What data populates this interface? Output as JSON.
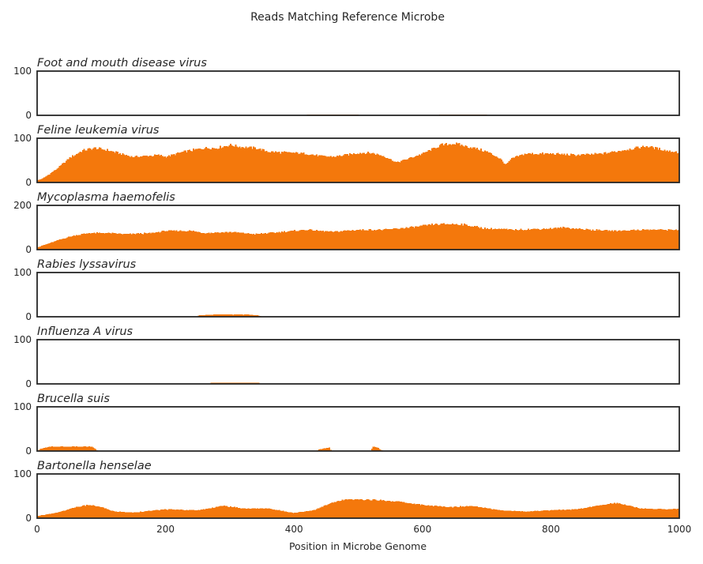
{
  "chart_data": {
    "type": "area",
    "title": "Reads Matching Reference Microbe",
    "xlabel": "Position in Microbe Genome",
    "xlim": [
      0,
      1000
    ],
    "x_ticks": [
      0,
      200,
      400,
      600,
      800,
      1000
    ],
    "bin_width": 2,
    "fill_color": "#f4780c",
    "grid": false,
    "legend": "none",
    "panels": [
      {
        "name": "Foot and mouth disease virus",
        "ylim": [
          0,
          100
        ],
        "y_ticks": [
          0,
          100
        ],
        "profile": [
          [
            0,
            0
          ],
          [
            420,
            0
          ],
          [
            421,
            2
          ],
          [
            500,
            2
          ],
          [
            501,
            0
          ],
          [
            625,
            0
          ],
          [
            626,
            2
          ],
          [
            700,
            2
          ],
          [
            701,
            0
          ],
          [
            1000,
            0
          ]
        ]
      },
      {
        "name": "Feline leukemia virus",
        "ylim": [
          0,
          100
        ],
        "y_ticks": [
          0,
          100
        ],
        "profile": [
          [
            0,
            5
          ],
          [
            10,
            10
          ],
          [
            30,
            30
          ],
          [
            50,
            55
          ],
          [
            70,
            72
          ],
          [
            90,
            78
          ],
          [
            110,
            73
          ],
          [
            130,
            65
          ],
          [
            150,
            58
          ],
          [
            170,
            60
          ],
          [
            190,
            62
          ],
          [
            200,
            58
          ],
          [
            210,
            62
          ],
          [
            230,
            70
          ],
          [
            260,
            78
          ],
          [
            280,
            78
          ],
          [
            300,
            85
          ],
          [
            320,
            80
          ],
          [
            340,
            78
          ],
          [
            360,
            70
          ],
          [
            380,
            68
          ],
          [
            400,
            67
          ],
          [
            420,
            65
          ],
          [
            440,
            60
          ],
          [
            460,
            58
          ],
          [
            480,
            62
          ],
          [
            500,
            67
          ],
          [
            520,
            67
          ],
          [
            540,
            60
          ],
          [
            560,
            45
          ],
          [
            580,
            55
          ],
          [
            600,
            65
          ],
          [
            630,
            85
          ],
          [
            650,
            88
          ],
          [
            680,
            78
          ],
          [
            700,
            70
          ],
          [
            720,
            55
          ],
          [
            730,
            40
          ],
          [
            740,
            55
          ],
          [
            760,
            65
          ],
          [
            800,
            65
          ],
          [
            840,
            62
          ],
          [
            880,
            65
          ],
          [
            920,
            75
          ],
          [
            950,
            82
          ],
          [
            980,
            72
          ],
          [
            1000,
            68
          ]
        ]
      },
      {
        "name": "Mycoplasma haemofelis",
        "ylim": [
          0,
          200
        ],
        "y_ticks": [
          0,
          200
        ],
        "profile": [
          [
            0,
            10
          ],
          [
            20,
            30
          ],
          [
            40,
            50
          ],
          [
            60,
            65
          ],
          [
            80,
            75
          ],
          [
            110,
            75
          ],
          [
            140,
            70
          ],
          [
            180,
            75
          ],
          [
            200,
            85
          ],
          [
            240,
            85
          ],
          [
            260,
            75
          ],
          [
            300,
            80
          ],
          [
            340,
            70
          ],
          [
            380,
            80
          ],
          [
            420,
            90
          ],
          [
            460,
            80
          ],
          [
            500,
            90
          ],
          [
            540,
            90
          ],
          [
            580,
            100
          ],
          [
            620,
            115
          ],
          [
            660,
            115
          ],
          [
            700,
            95
          ],
          [
            740,
            90
          ],
          [
            800,
            95
          ],
          [
            820,
            100
          ],
          [
            860,
            90
          ],
          [
            900,
            85
          ],
          [
            940,
            90
          ],
          [
            1000,
            90
          ]
        ]
      },
      {
        "name": "Rabies lyssavirus",
        "ylim": [
          0,
          100
        ],
        "y_ticks": [
          0,
          100
        ],
        "profile": [
          [
            0,
            0
          ],
          [
            250,
            0
          ],
          [
            251,
            3
          ],
          [
            275,
            5
          ],
          [
            330,
            5
          ],
          [
            345,
            3
          ],
          [
            350,
            0
          ],
          [
            1000,
            0
          ]
        ]
      },
      {
        "name": "Influenza A virus",
        "ylim": [
          0,
          100
        ],
        "y_ticks": [
          0,
          100
        ],
        "profile": [
          [
            0,
            0
          ],
          [
            270,
            0
          ],
          [
            271,
            3
          ],
          [
            345,
            3
          ],
          [
            346,
            0
          ],
          [
            1000,
            0
          ]
        ]
      },
      {
        "name": "Brucella suis",
        "ylim": [
          0,
          100
        ],
        "y_ticks": [
          0,
          100
        ],
        "profile": [
          [
            0,
            0
          ],
          [
            5,
            5
          ],
          [
            20,
            10
          ],
          [
            85,
            10
          ],
          [
            90,
            5
          ],
          [
            95,
            0
          ],
          [
            435,
            0
          ],
          [
            440,
            4
          ],
          [
            455,
            8
          ],
          [
            458,
            0
          ],
          [
            520,
            0
          ],
          [
            522,
            10
          ],
          [
            530,
            8
          ],
          [
            535,
            3
          ],
          [
            540,
            0
          ],
          [
            1000,
            0
          ]
        ]
      },
      {
        "name": "Bartonella henselae",
        "ylim": [
          0,
          100
        ],
        "y_ticks": [
          0,
          100
        ],
        "profile": [
          [
            0,
            5
          ],
          [
            30,
            12
          ],
          [
            60,
            25
          ],
          [
            80,
            30
          ],
          [
            100,
            25
          ],
          [
            120,
            15
          ],
          [
            150,
            13
          ],
          [
            200,
            20
          ],
          [
            250,
            18
          ],
          [
            290,
            28
          ],
          [
            320,
            22
          ],
          [
            360,
            22
          ],
          [
            400,
            12
          ],
          [
            430,
            18
          ],
          [
            460,
            35
          ],
          [
            480,
            42
          ],
          [
            520,
            42
          ],
          [
            560,
            38
          ],
          [
            600,
            30
          ],
          [
            640,
            25
          ],
          [
            680,
            28
          ],
          [
            720,
            18
          ],
          [
            760,
            15
          ],
          [
            800,
            18
          ],
          [
            840,
            20
          ],
          [
            880,
            30
          ],
          [
            900,
            35
          ],
          [
            940,
            22
          ],
          [
            980,
            20
          ],
          [
            1000,
            22
          ]
        ]
      }
    ]
  }
}
